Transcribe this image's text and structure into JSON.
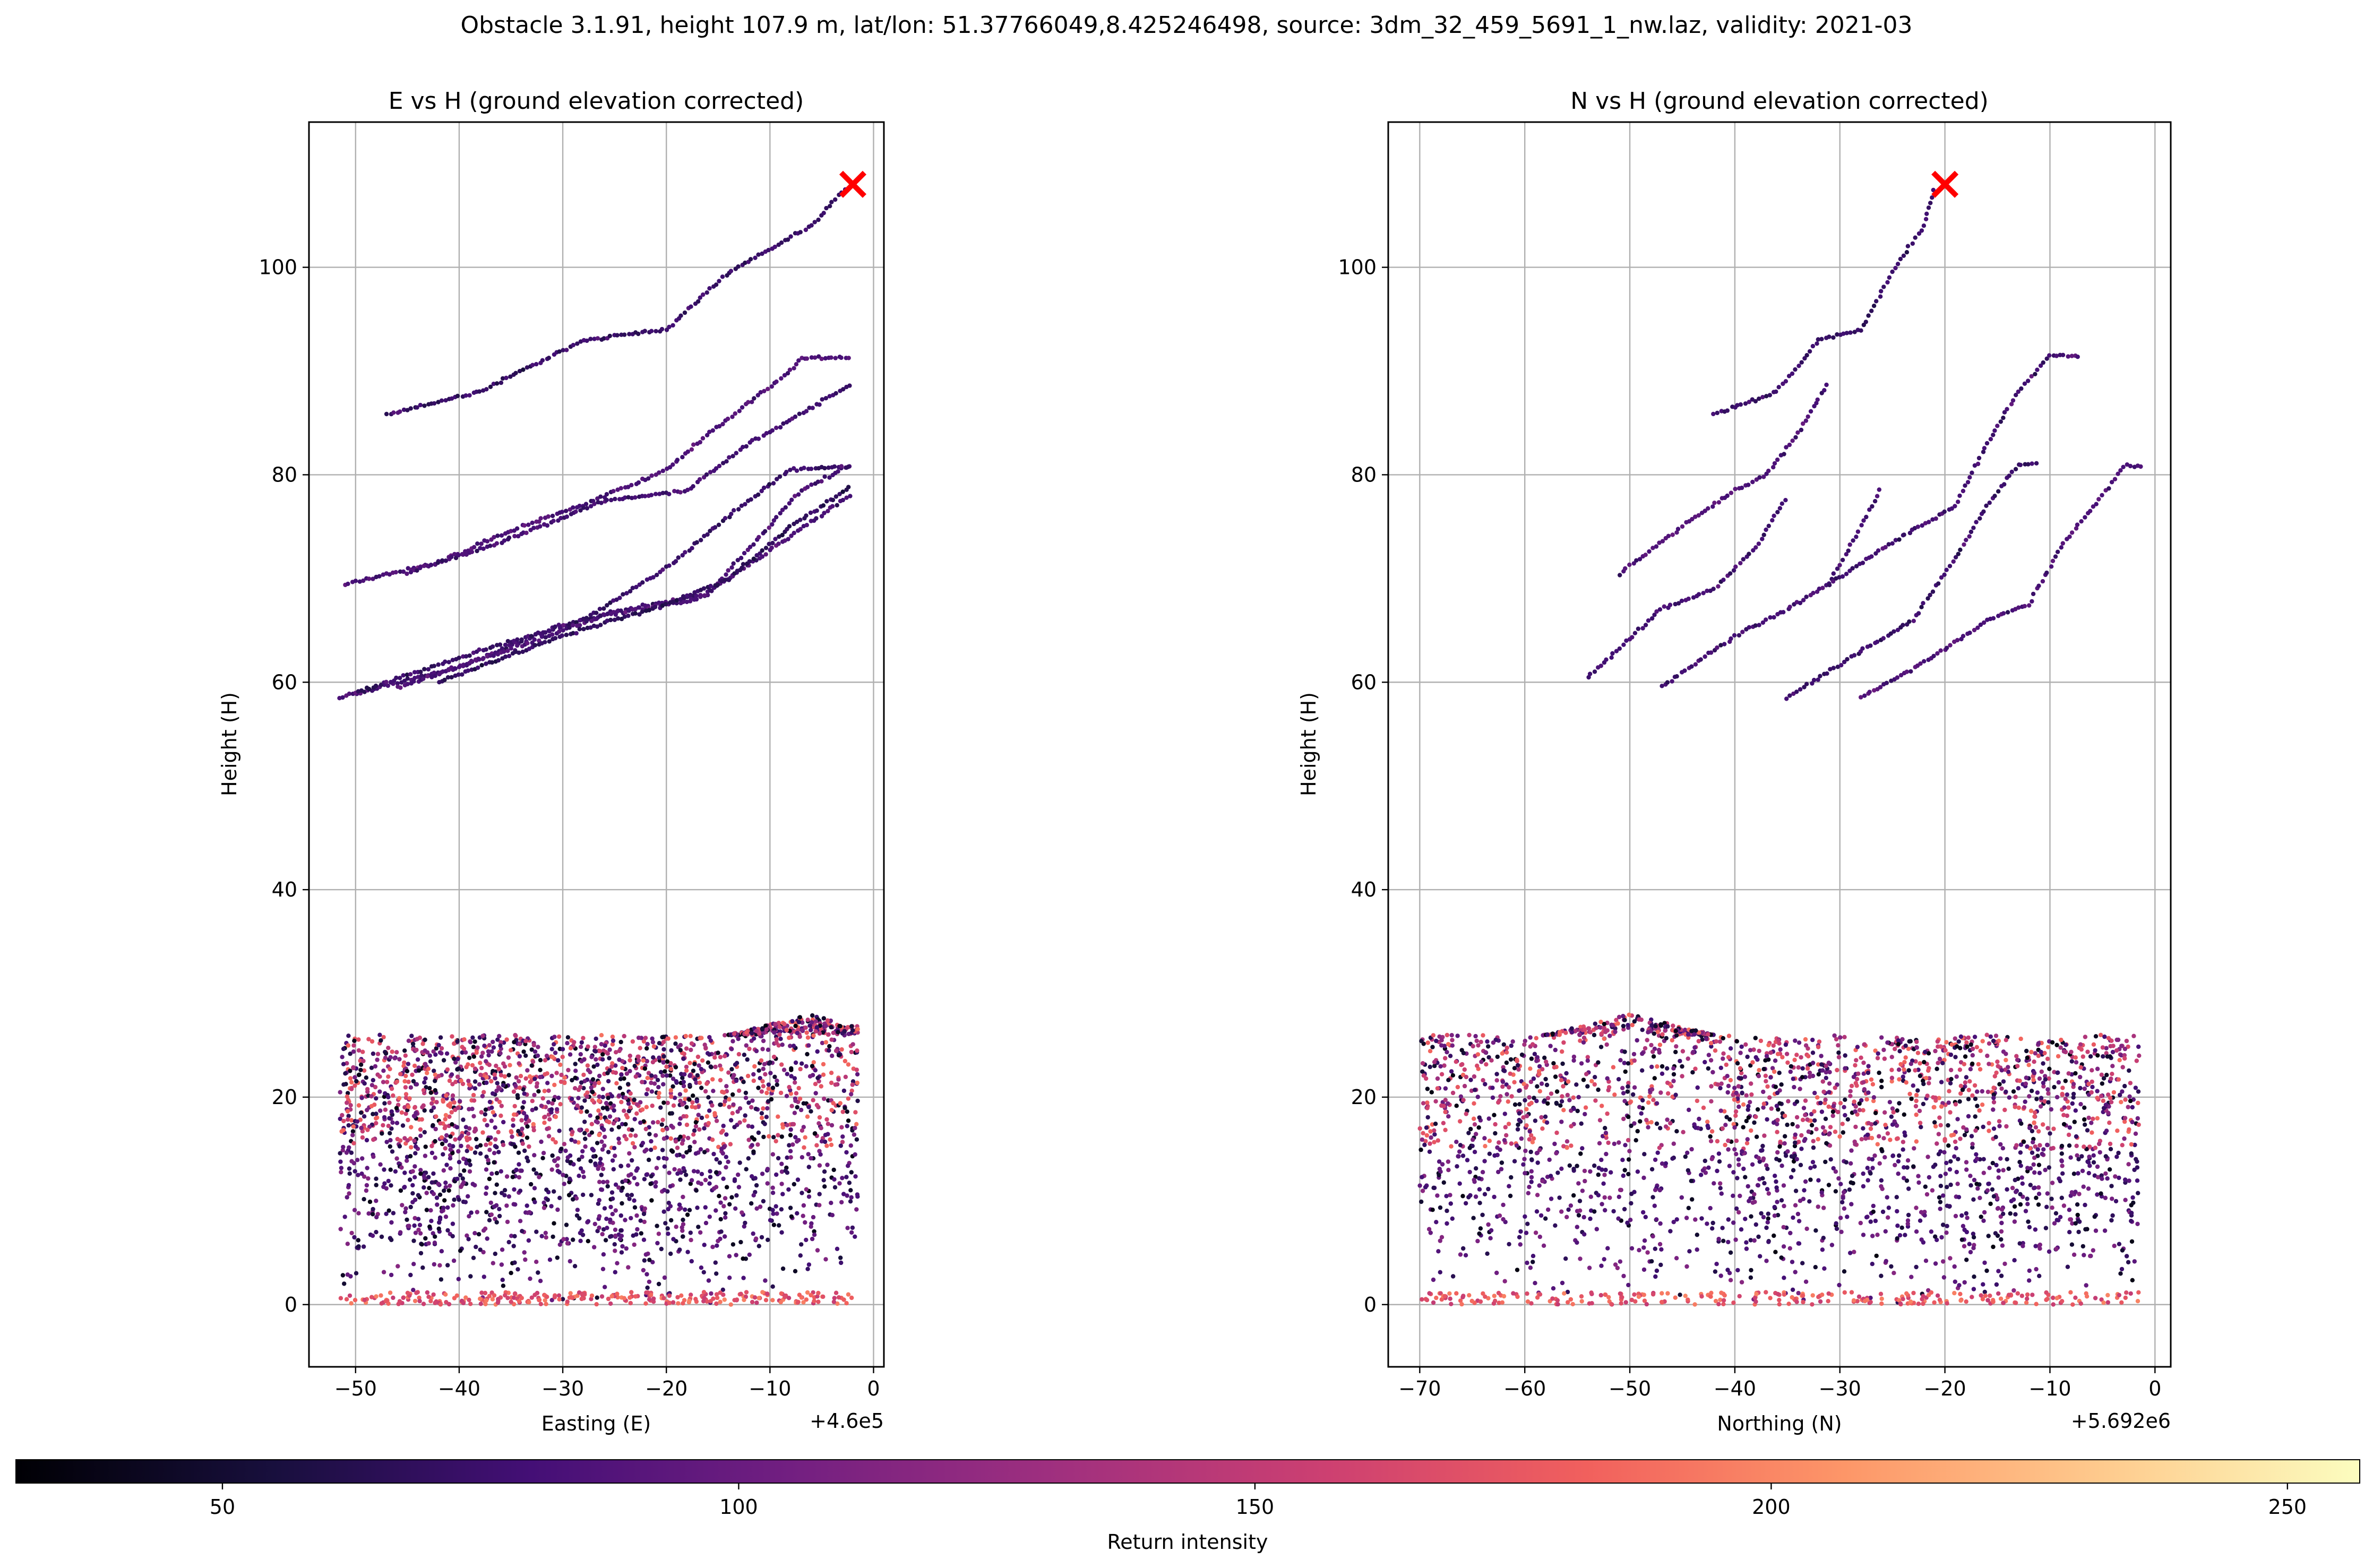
{
  "suptitle": "Obstacle 3.1.91, height 107.9 m, lat/lon: 51.37766049,8.425246498, source: 3dm_32_459_5691_1_nw.laz, validity: 2021-03",
  "colors": {
    "marker": "#ff0000",
    "grid": "#b0b0b0",
    "colormap": [
      "#000004",
      "#180f3d",
      "#440f76",
      "#721f81",
      "#9e2f7f",
      "#cd4071",
      "#f1605d",
      "#fd9668",
      "#feca8d",
      "#fcfdbf"
    ]
  },
  "colorbar": {
    "label": "Return intensity",
    "range": [
      30,
      257
    ],
    "ticks": [
      50,
      100,
      150,
      200,
      250
    ],
    "colormap": "magma"
  },
  "chart_data": [
    {
      "type": "scatter",
      "title": "E vs H (ground elevation corrected)",
      "xlabel": "Easting (E)",
      "ylabel": "Height (H)",
      "offset_label": "+4.6e5",
      "xlim": [
        -54.5,
        1.0
      ],
      "ylim": [
        -6,
        114
      ],
      "xticks": [
        -50,
        -40,
        -30,
        -20,
        -10,
        0
      ],
      "xtick_labels": [
        "−50",
        "−40",
        "−30",
        "−20",
        "−10",
        "0"
      ],
      "yticks": [
        0,
        20,
        40,
        60,
        80,
        100
      ],
      "ytick_labels": [
        "0",
        "20",
        "40",
        "60",
        "80",
        "100"
      ],
      "grid": true,
      "marker": {
        "x": -2,
        "y": 108,
        "symbol": "x",
        "color": "#ff0000"
      },
      "cable_lines": [
        {
          "points": [
            [
              -47,
              85.8
            ],
            [
              -38,
              88
            ],
            [
              -28,
              93
            ],
            [
              -20,
              94
            ],
            [
              -14,
              99.5
            ],
            [
              -6,
              104
            ],
            [
              -2.5,
              107.9
            ]
          ],
          "intensity": 75
        },
        {
          "points": [
            [
              -51,
              69.5
            ],
            [
              -42,
              71.5
            ],
            [
              -34,
              75
            ],
            [
              -27,
              77.5
            ],
            [
              -20,
              80.5
            ],
            [
              -14,
              85.5
            ],
            [
              -8,
              90
            ],
            [
              -7,
              91.3
            ],
            [
              -2,
              91.3
            ]
          ],
          "intensity": 85
        },
        {
          "points": [
            [
              -45,
              70.5
            ],
            [
              -36,
              73.5
            ],
            [
              -26,
              77.5
            ],
            [
              -18,
              78.5
            ],
            [
              -12,
              83
            ],
            [
              -2,
              88.8
            ]
          ],
          "intensity": 80
        },
        {
          "points": [
            [
              -51.5,
              58.5
            ],
            [
              -40,
              61.5
            ],
            [
              -30,
              65.5
            ],
            [
              -24,
              67
            ],
            [
              -16,
              68.5
            ],
            [
              -11,
              74
            ],
            [
              -7,
              78.5
            ],
            [
              -2,
              81
            ]
          ],
          "intensity": 80
        },
        {
          "points": [
            [
              -50,
              59
            ],
            [
              -38,
              63
            ],
            [
              -28,
              66
            ],
            [
              -20,
              71
            ],
            [
              -14,
              76
            ],
            [
              -8,
              80.5
            ],
            [
              -2,
              80.8
            ]
          ],
          "intensity": 75
        },
        {
          "points": [
            [
              -46,
              59.5
            ],
            [
              -34,
              63.5
            ],
            [
              -26,
              66.5
            ],
            [
              -17,
              68
            ],
            [
              -11,
              72
            ],
            [
              -2,
              78.2
            ]
          ],
          "intensity": 85
        },
        {
          "points": [
            [
              -42,
              60
            ],
            [
              -30,
              64.5
            ],
            [
              -20,
              67.5
            ],
            [
              -14,
              70
            ],
            [
              -8,
              75
            ],
            [
              -2,
              79
            ]
          ],
          "intensity": 70
        }
      ],
      "ground_cloud": {
        "x_range": [
          -51.5,
          -1.5
        ],
        "h_range": [
          0,
          26
        ],
        "dense_peak": {
          "x": -6,
          "h": 28
        }
      }
    },
    {
      "type": "scatter",
      "title": "N vs H (ground elevation corrected)",
      "xlabel": "Northing (N)",
      "ylabel": "Height (H)",
      "offset_label": "+5.692e6",
      "xlim": [
        -73.0,
        1.5
      ],
      "ylim": [
        -6,
        114
      ],
      "xticks": [
        -70,
        -60,
        -50,
        -40,
        -30,
        -20,
        -10,
        0
      ],
      "xtick_labels": [
        "−70",
        "−60",
        "−50",
        "−40",
        "−30",
        "−20",
        "−10",
        "0"
      ],
      "yticks": [
        0,
        20,
        40,
        60,
        80,
        100
      ],
      "ytick_labels": [
        "0",
        "20",
        "40",
        "60",
        "80",
        "100"
      ],
      "grid": true,
      "marker": {
        "x": -20,
        "y": 108,
        "symbol": "x",
        "color": "#ff0000"
      },
      "cable_lines": [
        {
          "points": [
            [
              -42,
              85.8
            ],
            [
              -36,
              88
            ],
            [
              -32,
              93
            ],
            [
              -28,
              94
            ],
            [
              -25,
              99.5
            ],
            [
              -22,
              104
            ],
            [
              -21,
              107.9
            ]
          ],
          "intensity": 75
        },
        {
          "points": [
            [
              -51,
              70.5
            ],
            [
              -45,
              75
            ],
            [
              -40,
              78.5
            ],
            [
              -37,
              80
            ],
            [
              -34,
              84
            ],
            [
              -31,
              89
            ]
          ],
          "intensity": 85
        },
        {
          "points": [
            [
              -54,
              60.5
            ],
            [
              -47,
              67
            ],
            [
              -42,
              69
            ],
            [
              -38,
              73
            ],
            [
              -35,
              78
            ]
          ],
          "intensity": 80
        },
        {
          "points": [
            [
              -47,
              59.5
            ],
            [
              -40,
              64.5
            ],
            [
              -35,
              67
            ],
            [
              -31,
              69.5
            ],
            [
              -28,
              75
            ],
            [
              -26,
              79
            ]
          ],
          "intensity": 80
        },
        {
          "points": [
            [
              -31,
              69.5
            ],
            [
              -25,
              73.5
            ],
            [
              -19,
              77
            ],
            [
              -16,
              83
            ],
            [
              -13,
              88
            ],
            [
              -10,
              91.5
            ],
            [
              -7,
              91.5
            ]
          ],
          "intensity": 80
        },
        {
          "points": [
            [
              -35,
              58.5
            ],
            [
              -28,
              63
            ],
            [
              -23,
              66
            ],
            [
              -19,
              72
            ],
            [
              -16,
              77
            ],
            [
              -13,
              81
            ],
            [
              -11,
              81
            ]
          ],
          "intensity": 75
        },
        {
          "points": [
            [
              -28,
              58.5
            ],
            [
              -21,
              62.5
            ],
            [
              -16,
              66
            ],
            [
              -12,
              67.5
            ],
            [
              -9,
              73
            ],
            [
              -5,
              78
            ],
            [
              -3,
              80.8
            ],
            [
              -1,
              80.8
            ]
          ],
          "intensity": 85
        }
      ],
      "ground_cloud": {
        "x_range": [
          -70,
          -1.5
        ],
        "h_range": [
          0,
          26
        ],
        "dense_peak": {
          "x": -50,
          "h": 28
        }
      }
    }
  ]
}
